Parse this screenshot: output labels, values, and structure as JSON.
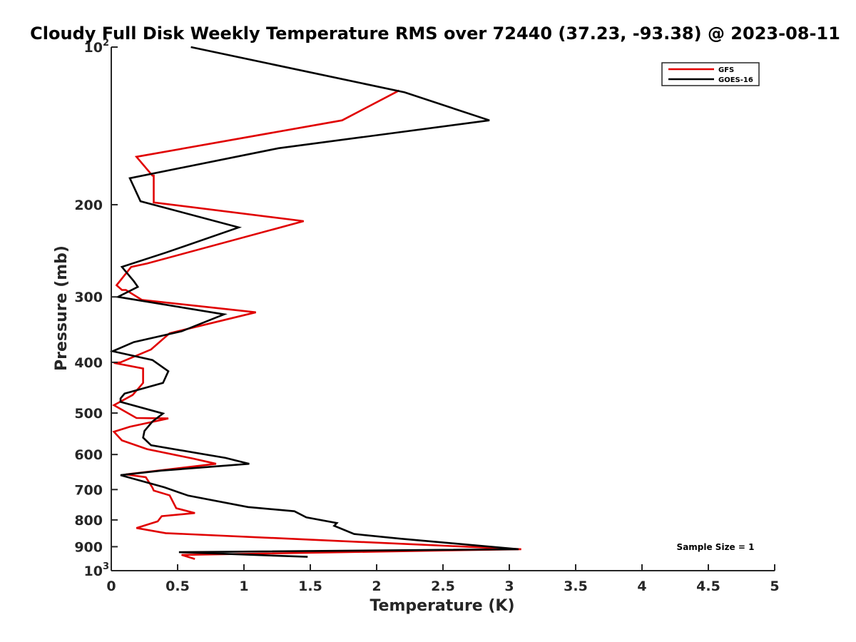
{
  "chart_data": {
    "type": "line",
    "title": "Cloudy Full Disk Weekly Temperature RMS over 72440 (37.23, -93.38) @ 2023-08-11",
    "xlabel": "Temperature (K)",
    "ylabel": "Pressure (mb)",
    "xlim": [
      0,
      5
    ],
    "ylim": [
      1000,
      100
    ],
    "y_scale": "log",
    "y_reversed": true,
    "x_ticks": [
      "0",
      "0.5",
      "1",
      "1.5",
      "2",
      "2.5",
      "3",
      "3.5",
      "4",
      "4.5",
      "5"
    ],
    "y_ticks": [
      {
        "value": 100,
        "label": "10",
        "exp": "2"
      },
      {
        "value": 200,
        "label": "200"
      },
      {
        "value": 300,
        "label": "300"
      },
      {
        "value": 400,
        "label": "400"
      },
      {
        "value": 500,
        "label": "500"
      },
      {
        "value": 600,
        "label": "600"
      },
      {
        "value": 700,
        "label": "700"
      },
      {
        "value": 800,
        "label": "800"
      },
      {
        "value": 900,
        "label": "900"
      },
      {
        "value": 1000,
        "label": "10",
        "exp": "3"
      }
    ],
    "legend_position": "top-right",
    "annotation": "Sample Size = 1",
    "series": [
      {
        "name": "GFS",
        "color": "#e00000",
        "points": [
          [
            2.17,
            121
          ],
          [
            1.74,
            138
          ],
          [
            0.19,
            162
          ],
          [
            0.31,
            176
          ],
          [
            0.32,
            176
          ],
          [
            0.32,
            198
          ],
          [
            1.45,
            215
          ],
          [
            0.27,
            259
          ],
          [
            0.15,
            263
          ],
          [
            0.04,
            285
          ],
          [
            0.08,
            291
          ],
          [
            0.11,
            291
          ],
          [
            0.23,
            304
          ],
          [
            1.09,
            321
          ],
          [
            0.44,
            352
          ],
          [
            0.3,
            378
          ],
          [
            0.07,
            400
          ],
          [
            0.02,
            401
          ],
          [
            0.24,
            411
          ],
          [
            0.24,
            438
          ],
          [
            0.21,
            447
          ],
          [
            0.16,
            462
          ],
          [
            0.02,
            483
          ],
          [
            0.19,
            511
          ],
          [
            0.43,
            512
          ],
          [
            0.14,
            531
          ],
          [
            0.02,
            543
          ],
          [
            0.08,
            564
          ],
          [
            0.27,
            586
          ],
          [
            0.62,
            611
          ],
          [
            0.79,
            625
          ],
          [
            0.11,
            655
          ],
          [
            0.26,
            663
          ],
          [
            0.31,
            694
          ],
          [
            0.32,
            703
          ],
          [
            0.44,
            718
          ],
          [
            0.49,
            760
          ],
          [
            0.63,
            776
          ],
          [
            0.38,
            787
          ],
          [
            0.35,
            805
          ],
          [
            0.19,
            829
          ],
          [
            0.41,
            848
          ],
          [
            3.09,
            910
          ],
          [
            0.53,
            933
          ],
          [
            0.63,
            950
          ]
        ]
      },
      {
        "name": "GOES-16",
        "color": "#000000",
        "points": [
          [
            0.6,
            100
          ],
          [
            2.21,
            122
          ],
          [
            2.85,
            138
          ],
          [
            1.26,
            156
          ],
          [
            0.14,
            178
          ],
          [
            0.22,
            197
          ],
          [
            0.96,
            221
          ],
          [
            0.41,
            247
          ],
          [
            0.08,
            263
          ],
          [
            0.17,
            280
          ],
          [
            0.2,
            287
          ],
          [
            0.05,
            300
          ],
          [
            0.85,
            324
          ],
          [
            0.53,
            349
          ],
          [
            0.17,
            366
          ],
          [
            0.01,
            381
          ],
          [
            0.31,
            396
          ],
          [
            0.43,
            416
          ],
          [
            0.39,
            438
          ],
          [
            0.1,
            459
          ],
          [
            0.07,
            469
          ],
          [
            0.07,
            476
          ],
          [
            0.39,
            501
          ],
          [
            0.31,
            519
          ],
          [
            0.25,
            541
          ],
          [
            0.24,
            557
          ],
          [
            0.3,
            576
          ],
          [
            0.86,
            609
          ],
          [
            1.04,
            625
          ],
          [
            0.38,
            644
          ],
          [
            0.07,
            657
          ],
          [
            0.4,
            693
          ],
          [
            0.58,
            719
          ],
          [
            1.03,
            756
          ],
          [
            1.38,
            770
          ],
          [
            1.47,
            791
          ],
          [
            1.7,
            811
          ],
          [
            1.68,
            821
          ],
          [
            1.83,
            851
          ],
          [
            2.18,
            869
          ],
          [
            3.07,
            910
          ],
          [
            0.51,
            922
          ],
          [
            1.48,
            941
          ]
        ]
      }
    ]
  }
}
